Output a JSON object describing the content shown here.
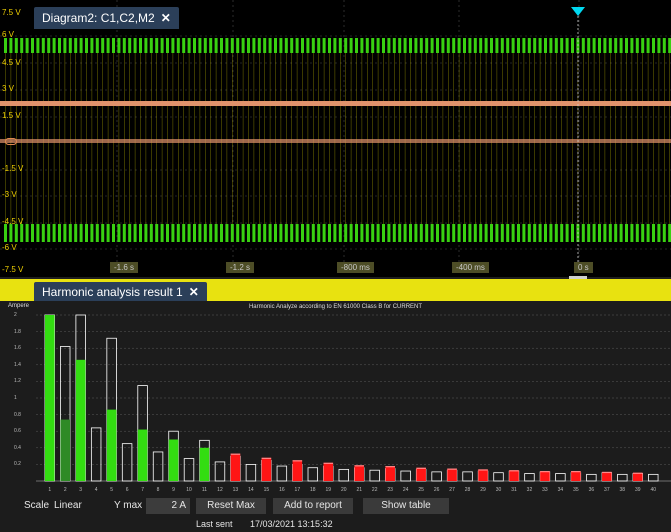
{
  "scope": {
    "tab_label": "Diagram2: C1,C2,M2",
    "close_glyph": "✕",
    "ref_left_label": "→",
    "y_labels": [
      "7.5 V",
      "6 V",
      "4.5 V",
      "3 V",
      "1.5 V",
      "-1.5 V",
      "-3 V",
      "-4.5 V",
      "-6 V",
      "-7.5 V"
    ],
    "x_labels": [
      "-1.6 s",
      "-1.2 s",
      "-800 ms",
      "-400 ms",
      "0 s"
    ],
    "colors": {
      "green_trace": "#39d111",
      "orange_trace": "#e0936b",
      "yellow_trace": "#d8d000",
      "trigger": "#00d8f0",
      "grid": "#4a4a4a"
    }
  },
  "harmonics": {
    "tab_label": "Harmonic analysis result 1",
    "close_glyph": "✕",
    "title": "Harmonic Analyze according to EN 61000 Class B for CURRENT",
    "y_axis_label": "Ampere",
    "y_ticks": [
      "2",
      "1.8",
      "1.6",
      "1.4",
      "1.2",
      "1",
      "0.8",
      "0.6",
      "0.4",
      "0.2"
    ],
    "x_ticks": [
      "1",
      "2",
      "3",
      "4",
      "5",
      "6",
      "7",
      "8",
      "9",
      "10",
      "11",
      "12",
      "13",
      "14",
      "15",
      "16",
      "17",
      "18",
      "19",
      "20",
      "21",
      "22",
      "23",
      "24",
      "25",
      "26",
      "27",
      "28",
      "29",
      "30",
      "31",
      "32",
      "33",
      "34",
      "35",
      "36",
      "37",
      "38",
      "39",
      "40"
    ],
    "colors": {
      "pass": "#33dd11",
      "pass_dark": "#2f8a26",
      "fail": "#ff1515",
      "limit_outline": "#ffffff"
    }
  },
  "chart_data": {
    "type": "bar",
    "title": "Harmonic Analyze according to EN 61000 Class B for CURRENT",
    "ylabel": "Ampere",
    "xlabel": "",
    "ylim": [
      0,
      2
    ],
    "categories": [
      1,
      2,
      3,
      4,
      5,
      6,
      7,
      8,
      9,
      10,
      11,
      12,
      13,
      14,
      15,
      16,
      17,
      18,
      19,
      20,
      21,
      22,
      23,
      24,
      25,
      26,
      27,
      28,
      29,
      30,
      31,
      32,
      33,
      34,
      35,
      36,
      37,
      38,
      39,
      40
    ],
    "series": [
      {
        "name": "",
        "values": [
          2.0,
          0.74,
          1.46,
          0,
          0.86,
          0,
          0.62,
          0,
          0.5,
          0,
          0.4,
          0,
          0.33,
          0,
          0.28,
          0,
          0.25,
          0,
          0.22,
          0,
          0.19,
          0,
          0.18,
          0,
          0.16,
          0,
          0.15,
          0,
          0.14,
          0,
          0.13,
          0,
          0.12,
          0,
          0.12,
          0,
          0.11,
          0,
          0.1,
          0
        ]
      },
      {
        "name": "",
        "values": [
          2.0,
          1.62,
          2.0,
          0.64,
          1.72,
          0.45,
          1.15,
          0.35,
          0.6,
          0.27,
          0.49,
          0.23,
          0.3,
          0.2,
          0.25,
          0.18,
          0.2,
          0.16,
          0.18,
          0.14,
          0.16,
          0.13,
          0.15,
          0.12,
          0.14,
          0.11,
          0.13,
          0.11,
          0.12,
          0.1,
          0.12,
          0.09,
          0.11,
          0.09,
          0.1,
          0.08,
          0.1,
          0.08,
          0.09,
          0.08
        ]
      }
    ],
    "bar_status": [
      "pass",
      "pass",
      "pass",
      "none",
      "pass",
      "none",
      "pass",
      "none",
      "pass",
      "none",
      "pass",
      "none",
      "fail",
      "none",
      "fail",
      "none",
      "fail",
      "none",
      "fail",
      "none",
      "fail",
      "none",
      "fail",
      "none",
      "fail",
      "none",
      "fail",
      "none",
      "fail",
      "none",
      "fail",
      "none",
      "fail",
      "none",
      "fail",
      "none",
      "fail",
      "none",
      "fail",
      "none"
    ],
    "grid": true
  },
  "controls": {
    "scale_label": "Scale",
    "scale_value": "Linear",
    "ymax_label": "Y max",
    "ymax_value": "2 A",
    "reset_max": "Reset Max",
    "add_to_report": "Add to report",
    "show_table": "Show table",
    "last_sent_label": "Last sent",
    "last_sent_value": "17/03/2021 13:15:32"
  }
}
